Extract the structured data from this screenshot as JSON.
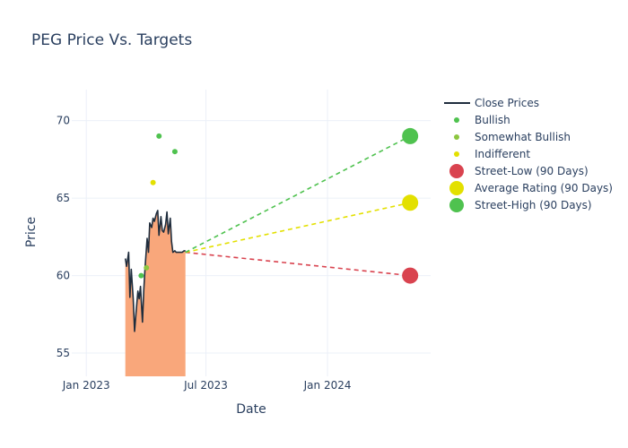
{
  "chart_data": {
    "type": "line",
    "title": "PEG Price Vs. Targets",
    "xlabel": "Date",
    "ylabel": "Price",
    "x_ticks": [
      "Jan 2023",
      "Jul 2023",
      "Jan 2024"
    ],
    "y_ticks": [
      "55",
      "60",
      "65",
      "70"
    ],
    "ylim": [
      53.5,
      72
    ],
    "xlim": [
      "2022-12-10",
      "2024-06-05"
    ],
    "grid": true,
    "legend_position": "right",
    "close_prices": {
      "name": "Close Prices",
      "color": "#1f2d3d",
      "fill_color": "#f9a77b",
      "x": [
        "2023-03-01",
        "2023-03-03",
        "2023-03-06",
        "2023-03-08",
        "2023-03-10",
        "2023-03-13",
        "2023-03-15",
        "2023-03-17",
        "2023-03-20",
        "2023-03-22",
        "2023-03-24",
        "2023-03-27",
        "2023-03-29",
        "2023-03-31",
        "2023-04-03",
        "2023-04-05",
        "2023-04-07",
        "2023-04-10",
        "2023-04-12",
        "2023-04-14",
        "2023-04-17",
        "2023-04-19",
        "2023-04-21",
        "2023-04-24",
        "2023-04-26",
        "2023-04-28",
        "2023-05-01",
        "2023-05-03",
        "2023-05-05",
        "2023-05-08",
        "2023-05-10",
        "2023-05-12",
        "2023-05-15",
        "2023-05-17",
        "2023-05-19",
        "2023-05-22",
        "2023-05-24",
        "2023-05-26",
        "2023-05-29",
        "2023-05-31"
      ],
      "y": [
        61.1,
        60.6,
        61.5,
        58.6,
        60.4,
        58.5,
        56.4,
        57.5,
        59.0,
        58.5,
        59.3,
        57.0,
        59.1,
        60.6,
        62.4,
        61.5,
        63.4,
        63.1,
        63.7,
        63.5,
        64.0,
        64.2,
        62.6,
        63.8,
        62.9,
        62.8,
        63.3,
        64.1,
        62.7,
        63.7,
        62.2,
        61.5,
        61.6,
        61.5,
        61.5,
        61.5,
        61.5,
        61.5,
        61.6,
        61.6
      ]
    },
    "analyst_ratings": [
      {
        "name": "Bullish",
        "color": "#4fc24f",
        "points": [
          {
            "x": "2023-03-25",
            "y": 60.0
          },
          {
            "x": "2023-04-21",
            "y": 69.0
          },
          {
            "x": "2023-05-15",
            "y": 68.0
          }
        ]
      },
      {
        "name": "Somewhat Bullish",
        "color": "#8cc63f",
        "points": [
          {
            "x": "2023-04-02",
            "y": 60.5
          }
        ]
      },
      {
        "name": "Indifferent",
        "color": "#e3e000",
        "points": [
          {
            "x": "2023-04-12",
            "y": 66.0
          }
        ]
      }
    ],
    "targets": {
      "start": {
        "x": "2023-05-31",
        "y": 61.5
      },
      "end_x": "2024-05-05",
      "series": [
        {
          "name": "Street-Low (90 Days)",
          "value": 60.0,
          "color": "#d9434f"
        },
        {
          "name": "Average Rating (90 Days)",
          "value": 64.7,
          "color": "#e3e000"
        },
        {
          "name": "Street-High (90 Days)",
          "value": 69.0,
          "color": "#4fc24f"
        }
      ]
    },
    "legend": [
      "Close Prices",
      "Bullish",
      "Somewhat Bullish",
      "Indifferent",
      "Street-Low (90 Days)",
      "Average Rating (90 Days)",
      "Street-High (90 Days)"
    ]
  }
}
